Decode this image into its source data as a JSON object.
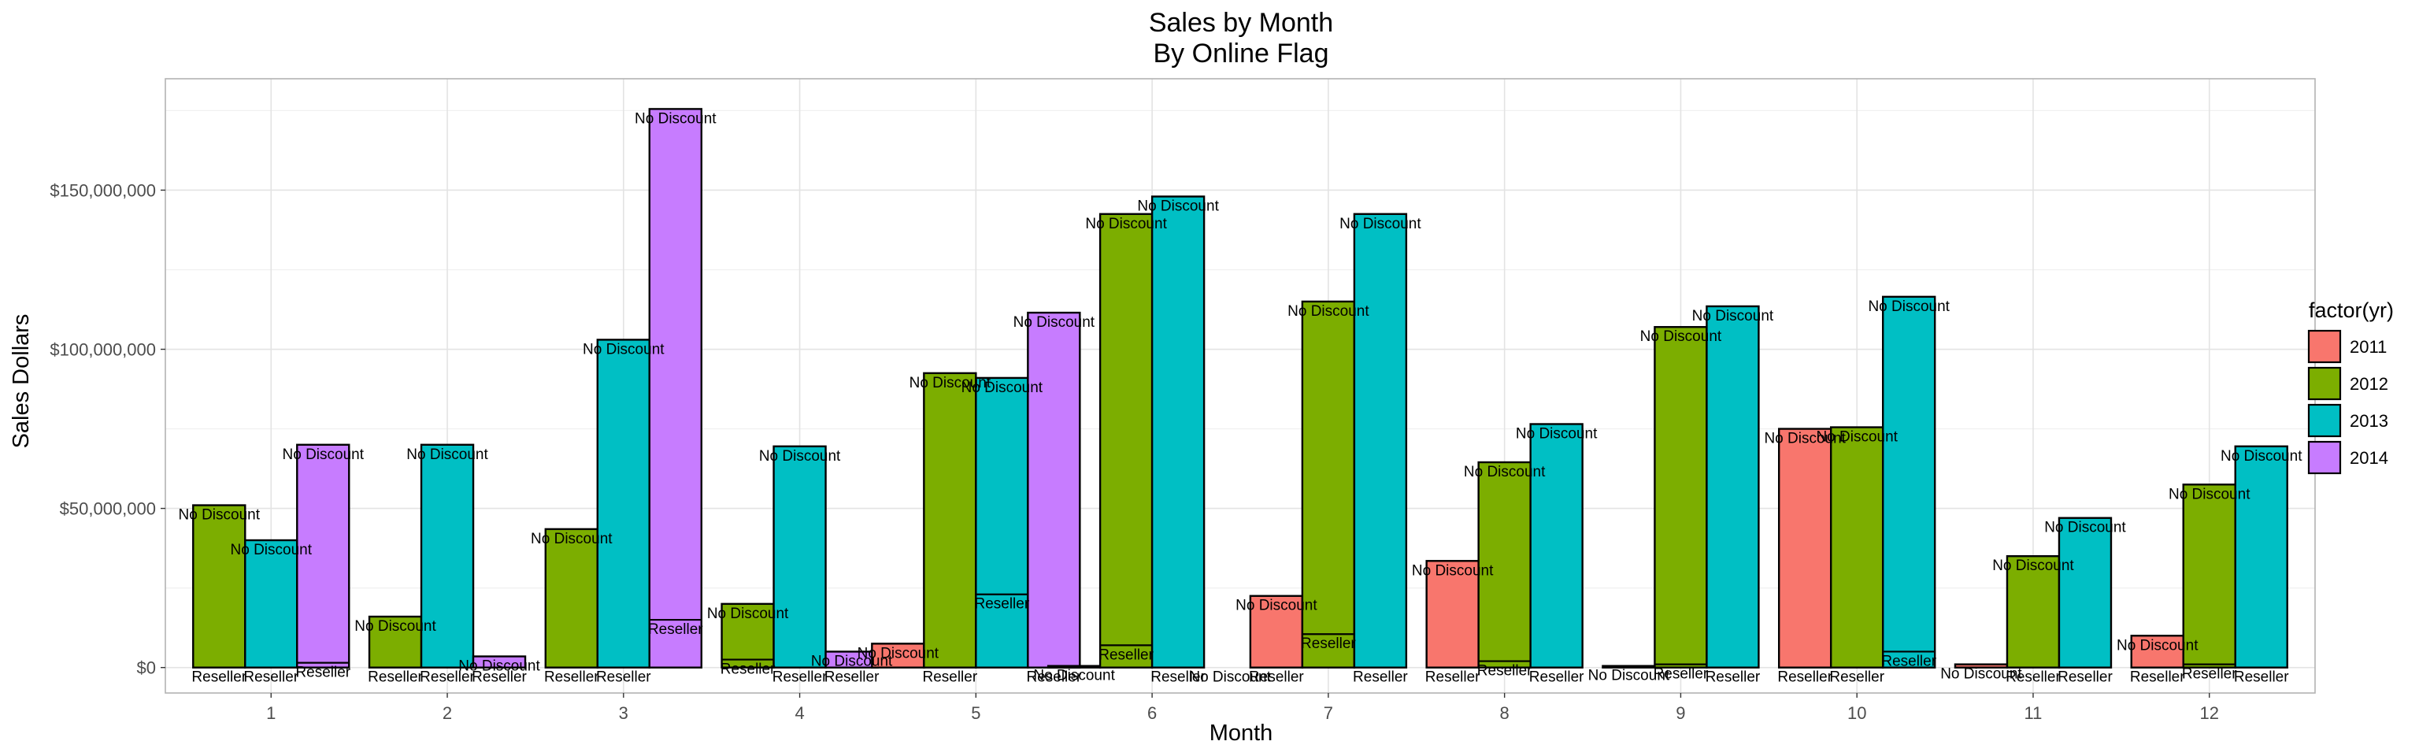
{
  "chart_data": {
    "type": "bar",
    "title": "Sales by Month",
    "subtitle": "By Online Flag",
    "xlabel": "Month",
    "ylabel": "Sales Dollars",
    "ylim": [
      -8000000,
      185000000
    ],
    "yticks": [
      0,
      50000000,
      100000000,
      150000000
    ],
    "ytick_labels": [
      "$0",
      "$50,000,000",
      "$100,000,000",
      "$150,000,000"
    ],
    "categories": [
      "1",
      "2",
      "3",
      "4",
      "5",
      "6",
      "7",
      "8",
      "9",
      "10",
      "11",
      "12"
    ],
    "grid": true,
    "legend": {
      "title": "factor(yr)",
      "position": "right"
    },
    "series": [
      {
        "name": "2011",
        "color": "#F8766D",
        "values": [
          null,
          null,
          null,
          null,
          7500000,
          500000,
          22500000,
          33500000,
          500000,
          75000000,
          1000000,
          10000000
        ],
        "reseller": [
          null,
          null,
          null,
          null,
          0,
          0,
          0,
          0,
          0,
          0,
          0,
          0
        ],
        "top_label": [
          null,
          null,
          null,
          null,
          "No Discount",
          "No Discount",
          "No Discount",
          "No Discount",
          "No Discount",
          "No Discount",
          "No Discount",
          "No Discount"
        ],
        "low_label": [
          null,
          null,
          null,
          null,
          "",
          "",
          "Reseller",
          "Reseller",
          "",
          "Reseller",
          "",
          "Reseller"
        ]
      },
      {
        "name": "2012",
        "color": "#7CAE00",
        "values": [
          51000000,
          16000000,
          43500000,
          20000000,
          92500000,
          142500000,
          115000000,
          64500000,
          107000000,
          75500000,
          35000000,
          57500000
        ],
        "reseller": [
          0,
          0,
          0,
          2500000,
          0,
          7000000,
          10500000,
          2000000,
          1000000,
          0,
          0,
          1000000
        ],
        "top_label": [
          "No Discount",
          "No Discount",
          "No Discount",
          "No Discount",
          "No Discount",
          "No Discount",
          "No Discount",
          "No Discount",
          "No Discount",
          "No Discount",
          "No Discount",
          "No Discount"
        ],
        "low_label": [
          "Reseller",
          "Reseller",
          "Reseller",
          "Reseller",
          "Reseller",
          "Reseller",
          "Reseller",
          "Reseller",
          "Reseller",
          "Reseller",
          "Reseller",
          "Reseller"
        ]
      },
      {
        "name": "2013",
        "color": "#00BFC4",
        "values": [
          40000000,
          70000000,
          103000000,
          69500000,
          91000000,
          148000000,
          142500000,
          76500000,
          113500000,
          116500000,
          47000000,
          69500000
        ],
        "reseller": [
          0,
          0,
          0,
          0,
          23000000,
          0,
          0,
          0,
          0,
          5000000,
          0,
          0
        ],
        "top_label": [
          "No Discount",
          "No Discount",
          "No Discount",
          "No Discount",
          "No Discount",
          "No Discount",
          "No Discount",
          "No Discount",
          "No Discount",
          "No Discount",
          "No Discount",
          "No Discount"
        ],
        "low_label": [
          "Reseller",
          "Reseller",
          "Reseller",
          "Reseller",
          "Reseller",
          "Reseller",
          "Reseller",
          "Reseller",
          "Reseller",
          "Reseller",
          "Reseller",
          "Reseller"
        ]
      },
      {
        "name": "2014",
        "color": "#C77CFF",
        "values": [
          70000000,
          3500000,
          175500000,
          5000000,
          111500000,
          0,
          null,
          null,
          null,
          null,
          null,
          null
        ],
        "reseller": [
          1500000,
          0,
          15000000,
          0,
          0,
          0,
          null,
          null,
          null,
          null,
          null,
          null
        ],
        "top_label": [
          "No Discount",
          "No Discount",
          "No Discount",
          "No Discount",
          "No Discount",
          "No Discount",
          null,
          null,
          null,
          null,
          null,
          null
        ],
        "low_label": [
          "Reseller",
          "Reseller",
          "Reseller",
          "Reseller",
          "Reseller",
          "",
          null,
          null,
          null,
          null,
          null,
          null
        ]
      }
    ]
  }
}
